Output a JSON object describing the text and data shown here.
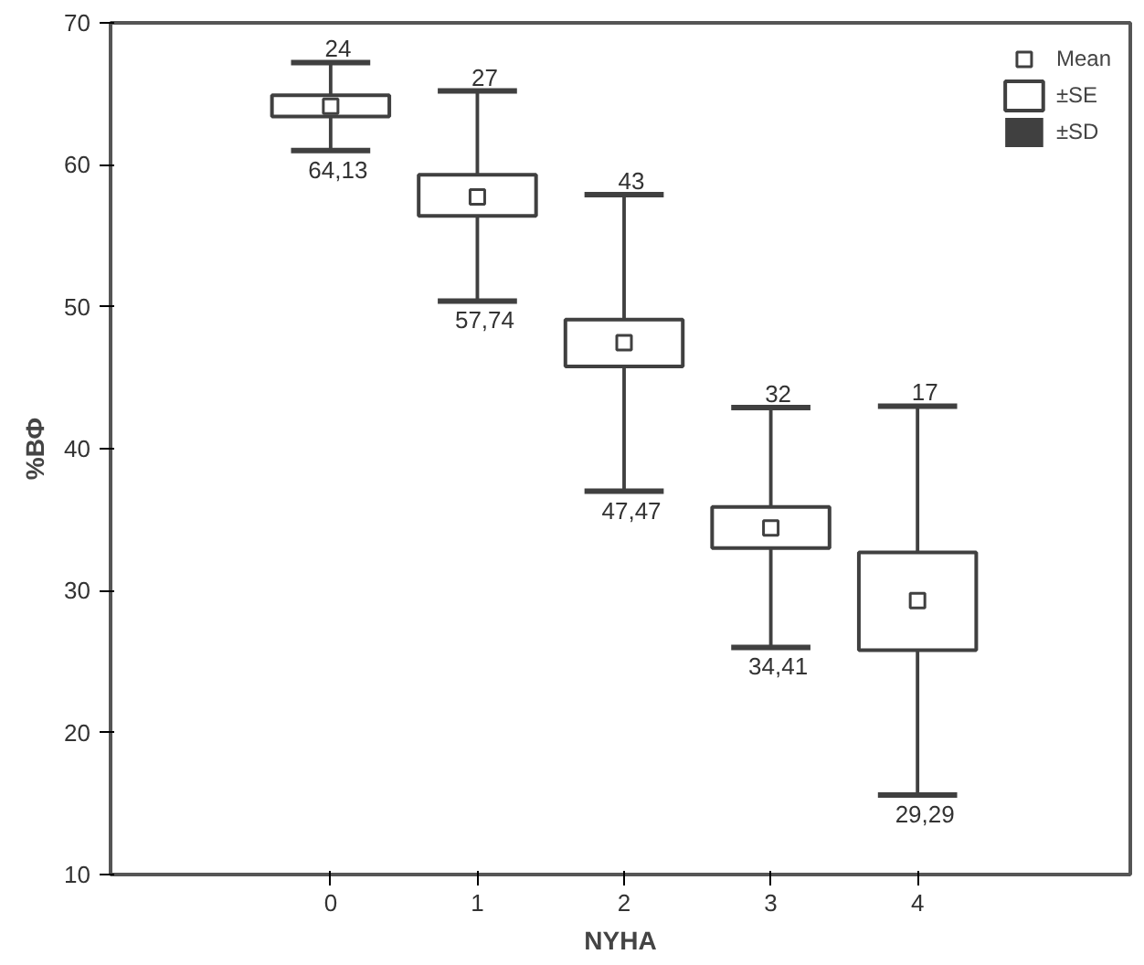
{
  "chart_data": {
    "type": "scatter",
    "xlabel": "NYHA",
    "ylabel": "%ВФ",
    "categories": [
      "0",
      "1",
      "2",
      "3",
      "4"
    ],
    "series": [
      {
        "name": "Mean",
        "color": "#404040",
        "marker": "square",
        "values": [
          64.13,
          57.74,
          47.47,
          34.41,
          29.29
        ]
      },
      {
        "name": "±SE",
        "type": "bar",
        "color": "#404040",
        "base": [
          63.4,
          56.4,
          45.8,
          33.0,
          25.8
        ],
        "values": [
          1.5,
          2.9,
          3.3,
          2.9,
          6.9
        ]
      },
      {
        "name": "±SD",
        "type": "bar",
        "color": "#404040",
        "base": [
          61.0,
          50.4,
          37.0,
          26.0,
          15.6
        ],
        "values": [
          6.2,
          14.8,
          20.9,
          16.9,
          27.4
        ]
      }
    ],
    "annotations": [
      {
        "text": "24",
        "x": "0",
        "y": 67.2
      },
      {
        "text": "27",
        "x": "1",
        "y": 65.2
      },
      {
        "text": "43",
        "x": "2",
        "y": 57.9
      },
      {
        "text": "32",
        "x": "3",
        "y": 42.9
      },
      {
        "text": "17",
        "x": "4",
        "y": 43.0
      },
      {
        "text": "64,13",
        "x": "0",
        "y": 61.0
      },
      {
        "text": "57,74",
        "x": "1",
        "y": 50.4
      },
      {
        "text": "47,47",
        "x": "2",
        "y": 37.0
      },
      {
        "text": "34,41",
        "x": "3",
        "y": 26.0
      },
      {
        "text": "29,29",
        "x": "4",
        "y": 15.6
      }
    ],
    "ylim": [
      10,
      70
    ],
    "yticks": [
      10,
      20,
      30,
      40,
      50,
      60,
      70
    ],
    "grid": false,
    "legend": "top right"
  }
}
